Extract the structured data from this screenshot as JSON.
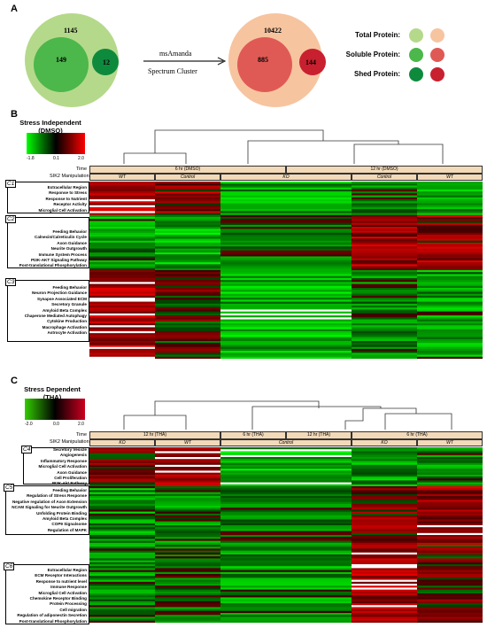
{
  "panels": {
    "a": "A",
    "b": "B",
    "c": "C"
  },
  "venn": {
    "left": {
      "outer": "1145",
      "inner_left": "149",
      "inner_right": "12"
    },
    "right": {
      "outer": "10422",
      "inner_left": "885",
      "inner_right": "144"
    },
    "arrow_line1": "msAmanda",
    "arrow_line2": "Spectrum Cluster"
  },
  "legend": {
    "items": [
      {
        "label": "Total Protein:",
        "c1": "#b5d98b",
        "c2": "#f7c4a0"
      },
      {
        "label": "Soluble Protein:",
        "c1": "#4cb74b",
        "c2": "#e05a55"
      },
      {
        "label": "Shed Protein:",
        "c1": "#0e8a3d",
        "c2": "#c8202f"
      }
    ]
  },
  "heatmap_b": {
    "title_line1": "Stress Independent",
    "title_line2": "(DMSO)",
    "scale_min": "-1.8",
    "scale_mid": "0.1",
    "scale_max": "2.0",
    "time_label": "Time",
    "manip_label": "SIK2 Manipulation",
    "time_groups": [
      "6 hr (DMSO)",
      "12 hr (DMSO)"
    ],
    "manip_groups": [
      "WT",
      "Control",
      "KO",
      "Control",
      "WT"
    ],
    "clusters": [
      {
        "id": "C1",
        "genes": [
          "Extracellular Region",
          "Response to Stress",
          "Response to Nutrient",
          "Receptor Activity",
          "Microglial Cell Activation"
        ]
      },
      {
        "id": "C2",
        "genes": [
          "Feeding Behavior",
          "Calnexin/Calreticulin Cycle",
          "Axon Guidance",
          "Neurite Outgrowth",
          "Immune System Process",
          "PI3K-AKT Signaling Pathway",
          "Post-translational Phosphorylation"
        ]
      },
      {
        "id": "C3",
        "genes": [
          "Feeding Behavior",
          "Neuron Projection Guidance",
          "Synapse Associated ECM",
          "Secretory Granule",
          "Amyloid Beta Complex",
          "Chaperone Mediated Autophagy",
          "Cytokine Production",
          "Macrophage Activation",
          "Astrocyte Activation"
        ]
      }
    ]
  },
  "heatmap_c": {
    "title_line1": "Stress Dependent",
    "title_line2": "(THA)",
    "scale_min": "-2.0",
    "scale_mid": "0.0",
    "scale_max": "2.0",
    "time_label": "Time",
    "manip_label": "SIK2 Manipulation",
    "time_groups": [
      "12 hr (THA)",
      "6 hr (THA)",
      "12 hr (THA)",
      "6 hr (THA)"
    ],
    "manip_groups": [
      "KO",
      "WT",
      "Control",
      "KO",
      "WT"
    ],
    "clusters": [
      {
        "id": "C4",
        "genes": [
          "Secretory Vesicle",
          "Angiogenesis",
          "Inflammatory Response",
          "Microglial Cell Activation",
          "Axon Guidance",
          "Cell Proliferation",
          "PI3K-Akt Pathway"
        ]
      },
      {
        "id": "C5",
        "genes": [
          "Feeding Behavior",
          "Regulation of Stress Response",
          "Negative regulation of Axon Extension",
          "NCAM Signaling for Neurite Outgrowth",
          "Unfolding Protein Binding",
          "Amyloid Beta Complex",
          "COP9 Signalsome",
          "Regulation of MAPK"
        ]
      },
      {
        "id": "C6",
        "genes": [
          "Extracellular Region",
          "ECM Receptor Interactions",
          "Response to nutrient level",
          "Immune Response",
          "Microglial Cell Activation",
          "Chemokine Receptor Binding",
          "Protein Processing",
          "Cell migration",
          "Regulation of adiponectin Secretion",
          "Post-translational Phosphorylation"
        ]
      }
    ]
  }
}
